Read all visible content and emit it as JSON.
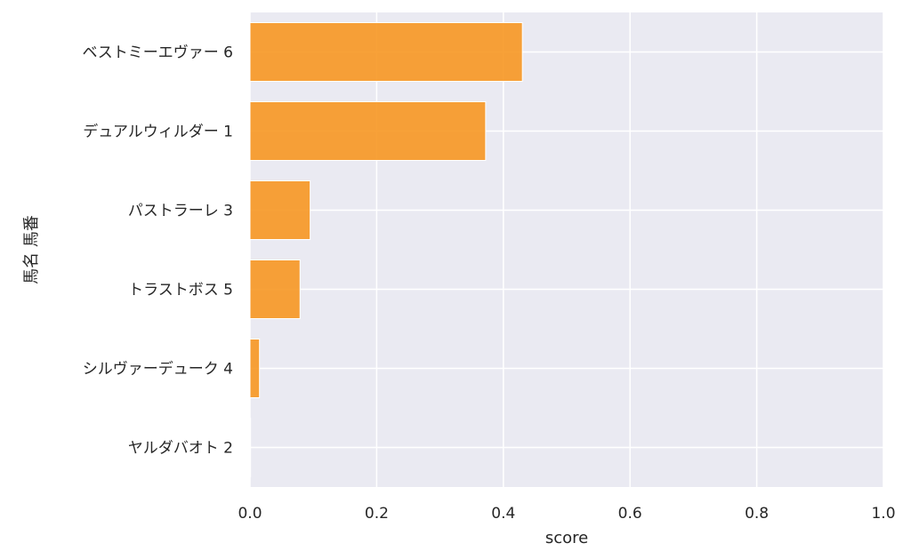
{
  "chart_data": {
    "type": "bar",
    "orientation": "horizontal",
    "categories": [
      "ベストミーエヴァー 6",
      "デュアルウィルダー 1",
      "パストラーレ 3",
      "トラストボス 5",
      "シルヴァーデューク 4",
      "ヤルダバオト 2"
    ],
    "values": [
      0.43,
      0.372,
      0.095,
      0.079,
      0.015,
      0.001
    ],
    "xlabel": "score",
    "ylabel": "馬名 馬番",
    "xlim": [
      0,
      1
    ],
    "xticks": [
      "0.0",
      "0.2",
      "0.4",
      "0.6",
      "0.8",
      "1.0"
    ],
    "grid": true,
    "colors": {
      "bar": "#f7941d",
      "plot_bg": "#eaeaf2",
      "grid": "#ffffff"
    }
  }
}
